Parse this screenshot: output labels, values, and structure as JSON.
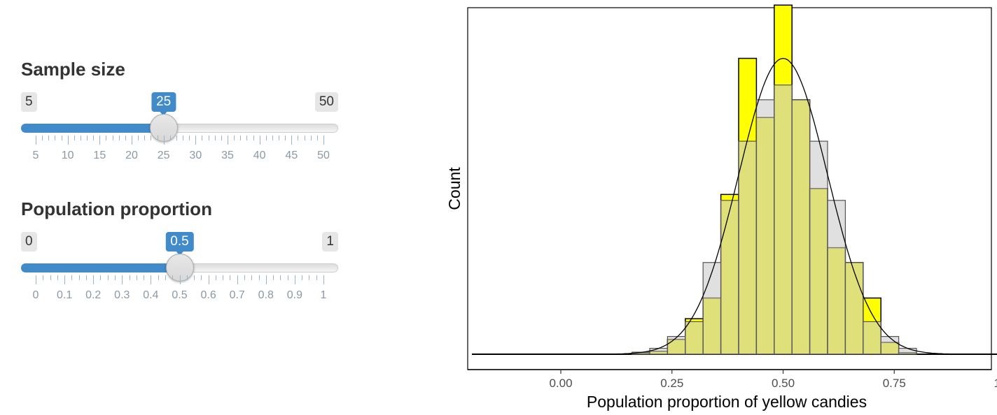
{
  "sliders": [
    {
      "label": "Sample size",
      "min": 5,
      "max": 50,
      "value": 25,
      "min_label": "5",
      "max_label": "50",
      "value_label": "25",
      "major_ticks": [
        "5",
        "10",
        "15",
        "20",
        "25",
        "30",
        "35",
        "40",
        "45",
        "50"
      ],
      "minor_per_major": 4
    },
    {
      "label": "Population proportion",
      "min": 0,
      "max": 1,
      "value": 0.5,
      "min_label": "0",
      "max_label": "1",
      "value_label": "0.5",
      "major_ticks": [
        "0",
        "0.1",
        "0.2",
        "0.3",
        "0.4",
        "0.5",
        "0.6",
        "0.7",
        "0.8",
        "0.9",
        "1"
      ],
      "minor_per_major": 3
    }
  ],
  "colors": {
    "accent": "#428bca",
    "bar_fill": "#ffff00",
    "overlay_fill": "#cccccc"
  },
  "chart_data": {
    "type": "bar",
    "xlabel": "Population proportion of yellow candies",
    "ylabel": "Count",
    "xlim": [
      -0.2,
      1.2
    ],
    "x_ticks": [
      0,
      0.25,
      0.5,
      0.75,
      1
    ],
    "x_tick_labels": [
      "0.00",
      "0.25",
      "0.50",
      "0.75",
      "1.00"
    ],
    "bin_width": 0.04,
    "sample_bins": {
      "x": [
        0.18,
        0.22,
        0.26,
        0.3,
        0.34,
        0.38,
        0.42,
        0.46,
        0.5,
        0.54,
        0.58,
        0.62,
        0.66,
        0.7,
        0.74,
        0.78
      ],
      "values": [
        0.5,
        1,
        5,
        12,
        19,
        54,
        100,
        80,
        118,
        86,
        56,
        36,
        31,
        19,
        4,
        0.5
      ]
    },
    "theoretical_bins": {
      "x": [
        0.18,
        0.22,
        0.26,
        0.3,
        0.34,
        0.38,
        0.42,
        0.46,
        0.5,
        0.54,
        0.58,
        0.62,
        0.66,
        0.7,
        0.74,
        0.78
      ],
      "values": [
        0.7,
        2,
        6,
        11,
        31,
        52,
        72,
        86,
        91,
        86,
        72,
        52,
        31,
        11,
        6,
        2
      ]
    },
    "normal_curve": {
      "mean": 0.5,
      "sd": 0.1,
      "peak": 100
    },
    "ylim": [
      0,
      115
    ],
    "grid": false
  }
}
